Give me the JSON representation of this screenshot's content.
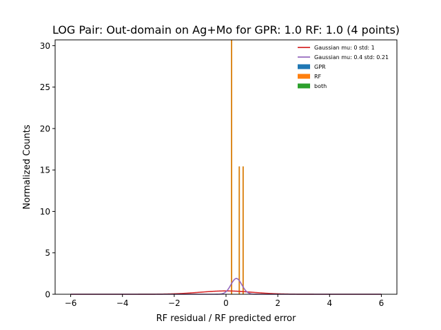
{
  "chart_data": {
    "type": "histogram",
    "title": "LOG Pair: Out-domain on Ag+Mo for GPR: 1.0 RF: 1.0 (4 points)",
    "xlabel": "RF residual / RF predicted error",
    "ylabel": "Normalized Counts",
    "xlim": [
      -6.6,
      6.6
    ],
    "ylim": [
      0,
      30.7
    ],
    "xticks": [
      -6,
      -4,
      -2,
      0,
      2,
      4,
      6
    ],
    "xtick_labels": [
      "−6",
      "−4",
      "−2",
      "0",
      "2",
      "4",
      "6"
    ],
    "yticks": [
      0,
      5,
      10,
      15,
      20,
      25,
      30
    ],
    "ytick_labels": [
      "0",
      "5",
      "10",
      "15",
      "20",
      "25",
      "30"
    ],
    "grid": false,
    "legend_position": "top-right",
    "series": [
      {
        "name": "Gaussian mu: 0 std: 1",
        "kind": "line",
        "mu": 0,
        "sigma": 1,
        "x_range": [
          -6,
          6
        ],
        "color": "#d62728"
      },
      {
        "name": "Gaussian mu: 0.4 std: 0.21",
        "kind": "line",
        "mu": 0.4,
        "sigma": 0.21,
        "x_range": [
          -6,
          6
        ],
        "color": "#9467bd"
      },
      {
        "name": "GPR",
        "kind": "hist",
        "color": "#1f77b4",
        "bars": []
      },
      {
        "name": "RF",
        "kind": "hist",
        "color": "#ff7f0e",
        "edgecolor": "#c47900",
        "bars": [
          {
            "x0": 0.2,
            "x1": 0.232,
            "height": 30.7
          },
          {
            "x0": 0.497,
            "x1": 0.529,
            "height": 15.4
          },
          {
            "x0": 0.645,
            "x1": 0.677,
            "height": 15.4
          }
        ]
      },
      {
        "name": "both",
        "kind": "hist",
        "color": "#2ca02c",
        "bars": []
      }
    ]
  }
}
